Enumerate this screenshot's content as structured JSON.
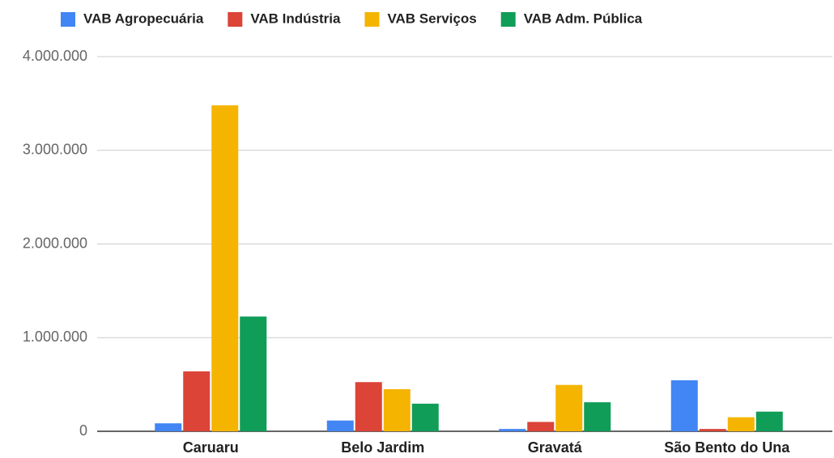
{
  "chart_data": {
    "type": "bar",
    "categories": [
      "Caruaru",
      "Belo Jardim",
      "Gravatá",
      "São Bento do Una"
    ],
    "series": [
      {
        "name": "VAB Agropecuária",
        "color": "#4285f4",
        "values": [
          85000,
          115000,
          25000,
          545000
        ]
      },
      {
        "name": "VAB Indústria",
        "color": "#db4437",
        "values": [
          640000,
          525000,
          100000,
          25000
        ]
      },
      {
        "name": "VAB Serviços",
        "color": "#f4b400",
        "values": [
          3480000,
          450000,
          495000,
          150000
        ]
      },
      {
        "name": "VAB Adm. Pública",
        "color": "#0f9d58",
        "values": [
          1225000,
          295000,
          310000,
          210000
        ]
      }
    ],
    "ylim": [
      0,
      4000000
    ],
    "yticks": [
      0,
      {
        "value": 1000000,
        "label": "1.000.000"
      },
      {
        "value": 2000000,
        "label": "2.000.000"
      },
      {
        "value": 3000000,
        "label": "3.000.000"
      },
      {
        "value": 4000000,
        "label": "4.000.000"
      }
    ],
    "grid": true,
    "legend": "top"
  }
}
